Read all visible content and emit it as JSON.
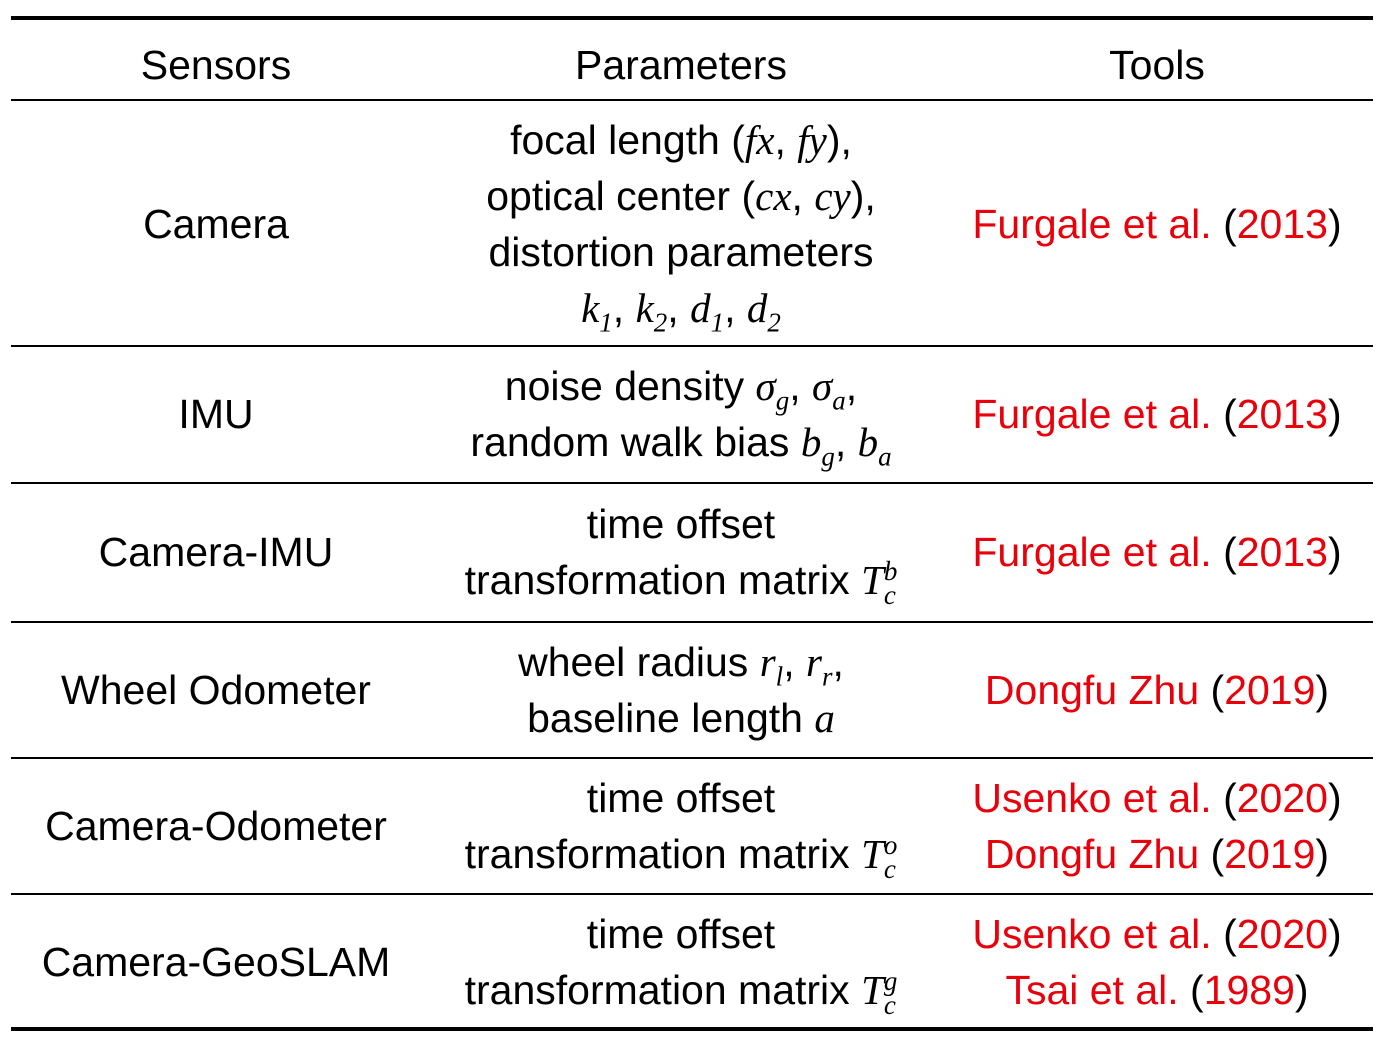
{
  "table": {
    "headers": [
      "Sensors",
      "Parameters",
      "Tools"
    ],
    "rows": [
      {
        "sensor": "Camera",
        "params": {
          "line1_pre": "focal length (",
          "fx": "fx",
          "sep1": ", ",
          "fy": "fy",
          "line1_post": "),",
          "line2_pre": "optical center (",
          "cx": "cx",
          "sep2": ", ",
          "cy": "cy",
          "line2_post": "),",
          "line3": "distortion parameters",
          "k1": "k",
          "k1_sub": "1",
          "k2": "k",
          "k2_sub": "2",
          "d1": "d",
          "d1_sub": "1",
          "d2": "d",
          "d2_sub": "2",
          "comma": ", "
        },
        "tools": [
          {
            "author": "Furgale et al.",
            "year": "2013"
          }
        ]
      },
      {
        "sensor": "IMU",
        "params": {
          "line1_pre": "noise density ",
          "sg": "σ",
          "sg_sub": "g",
          "sa": "σ",
          "sa_sub": "a",
          "line2_pre": "random walk bias ",
          "bg": "b",
          "bg_sub": "g",
          "ba": "b",
          "ba_sub": "a",
          "comma": ", ",
          "trail": ","
        },
        "tools": [
          {
            "author": "Furgale et al.",
            "year": "2013"
          }
        ]
      },
      {
        "sensor": "Camera-IMU",
        "params": {
          "line1": "time offset",
          "line2_pre": "transformation matrix ",
          "T": "T",
          "T_sup": "b",
          "T_sub": "c"
        },
        "tools": [
          {
            "author": "Furgale et al.",
            "year": "2013"
          }
        ]
      },
      {
        "sensor": "Wheel Odometer",
        "params": {
          "line1_pre": "wheel radius ",
          "rl": "r",
          "rl_sub": "l",
          "rr": "r",
          "rr_sub": "r",
          "comma": ", ",
          "trail": ",",
          "line2_pre": "baseline length ",
          "a": "a"
        },
        "tools": [
          {
            "author": "Dongfu Zhu",
            "year": "2019"
          }
        ]
      },
      {
        "sensor": "Camera-Odometer",
        "params": {
          "line1": "time offset",
          "line2_pre": "transformation matrix ",
          "T": "T",
          "T_sup": "o",
          "T_sub": "c"
        },
        "tools": [
          {
            "author": "Usenko et al.",
            "year": "2020"
          },
          {
            "author": "Dongfu Zhu",
            "year": "2019"
          }
        ]
      },
      {
        "sensor": "Camera-GeoSLAM",
        "params": {
          "line1": "time offset",
          "line2_pre": "transformation matrix ",
          "T": "T",
          "T_sup": "g",
          "T_sub": "c"
        },
        "tools": [
          {
            "author": "Usenko et al.",
            "year": "2020"
          },
          {
            "author": "Tsai et al.",
            "year": "1989"
          }
        ]
      }
    ],
    "punct": {
      "open": " (",
      "close": ")"
    },
    "colors": {
      "reference": "#e8000b",
      "text": "#000000"
    }
  }
}
